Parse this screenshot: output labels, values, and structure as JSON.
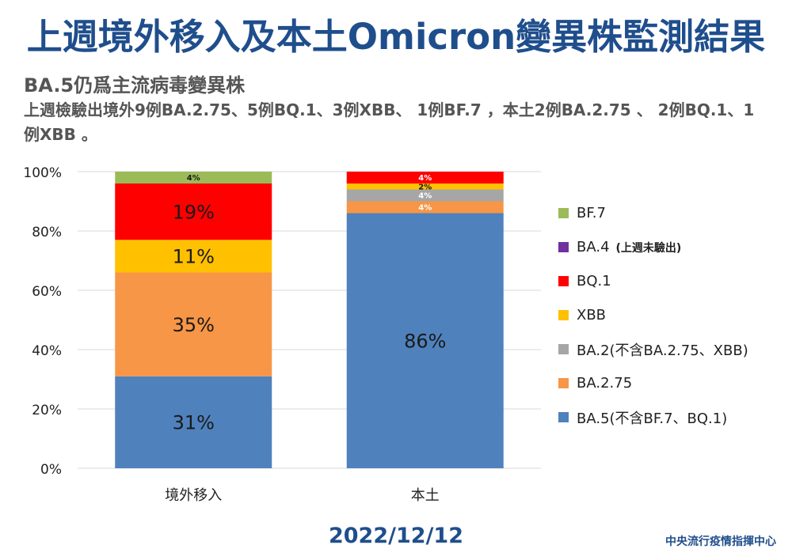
{
  "header": {
    "title": "上週境外移入及本土Omicron變異株監測結果",
    "subtitle": "BA.5仍爲主流病毒變異株",
    "description": "上週檢驗出境外9例BA.2.75、5例BQ.1、3例XBB、 1例BF.7 ，本土2例BA.2.75 、 2例BQ.1、1例XBB 。"
  },
  "footer": {
    "date": "2022/12/12",
    "org": "中央流行疫情指揮中心"
  },
  "legend": [
    {
      "label": "BF.7",
      "color": "#9bbb59",
      "note": ""
    },
    {
      "label": "BA.4",
      "color": "#7030a0",
      "note": "(上週未驗出)"
    },
    {
      "label": "BQ.1",
      "color": "#ff0000",
      "note": ""
    },
    {
      "label": "XBB",
      "color": "#ffc000",
      "note": ""
    },
    {
      "label": "BA.2(不含BA.2.75、XBB)",
      "color": "#a6a6a6",
      "note": ""
    },
    {
      "label": "BA.2.75",
      "color": "#f79646",
      "note": ""
    },
    {
      "label": "BA.5(不含BF.7、BQ.1)",
      "color": "#4f81bd",
      "note": ""
    }
  ],
  "chart_data": {
    "type": "bar",
    "stacked": true,
    "categories": [
      "境外移入",
      "本土"
    ],
    "ylim": [
      0,
      100
    ],
    "yticks": [
      "0%",
      "20%",
      "40%",
      "60%",
      "80%",
      "100%"
    ],
    "series": [
      {
        "name": "BA.5(不含BF.7、BQ.1)",
        "color": "#4f81bd",
        "values": [
          31,
          86
        ],
        "labels": [
          "31%",
          "86%"
        ]
      },
      {
        "name": "BA.2.75",
        "color": "#f79646",
        "values": [
          35,
          4
        ],
        "labels": [
          "35%",
          "4%"
        ]
      },
      {
        "name": "BA.2(不含BA.2.75、XBB)",
        "color": "#a6a6a6",
        "values": [
          0,
          4
        ],
        "labels": [
          "",
          "4%"
        ]
      },
      {
        "name": "XBB",
        "color": "#ffc000",
        "values": [
          11,
          2
        ],
        "labels": [
          "11%",
          "2%"
        ]
      },
      {
        "name": "BQ.1",
        "color": "#ff0000",
        "values": [
          19,
          4
        ],
        "labels": [
          "19%",
          "4%"
        ]
      },
      {
        "name": "BA.4",
        "color": "#7030a0",
        "values": [
          0,
          0
        ],
        "labels": [
          "",
          ""
        ]
      },
      {
        "name": "BF.7",
        "color": "#9bbb59",
        "values": [
          4,
          0
        ],
        "labels": [
          "4%",
          ""
        ]
      }
    ]
  }
}
